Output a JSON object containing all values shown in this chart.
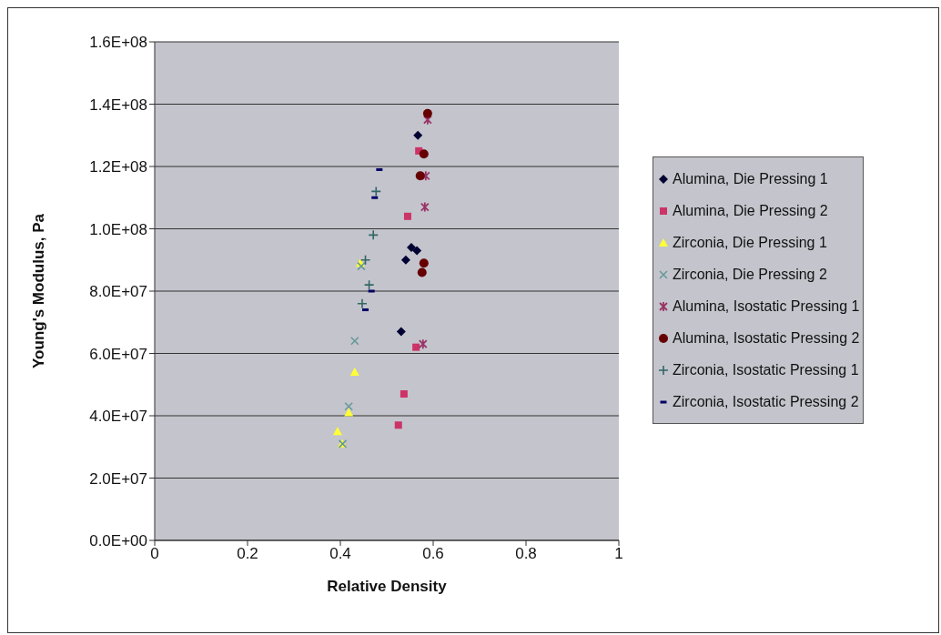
{
  "chart_data": {
    "type": "scatter",
    "xlabel": "Relative Density",
    "ylabel": "Young's Modulus, Pa",
    "xlim": [
      0,
      1
    ],
    "xticks": [
      0,
      0.2,
      0.4,
      0.6,
      0.8,
      1
    ],
    "ylim": [
      0,
      160000000
    ],
    "yticks": [
      {
        "value": 0,
        "label": "0.0E+00"
      },
      {
        "value": 20000000,
        "label": "2.0E+07"
      },
      {
        "value": 40000000,
        "label": "4.0E+07"
      },
      {
        "value": 60000000,
        "label": "6.0E+07"
      },
      {
        "value": 80000000,
        "label": "8.0E+07"
      },
      {
        "value": 100000000,
        "label": "1.0E+08"
      },
      {
        "value": 120000000,
        "label": "1.2E+08"
      },
      {
        "value": 140000000,
        "label": "1.4E+08"
      },
      {
        "value": 160000000,
        "label": "1.6E+08"
      }
    ],
    "grid": "y",
    "legend": "right",
    "series": [
      {
        "name": "Alumina, Die Pressing 1",
        "color": "#000033",
        "marker": "diamond",
        "x": [
          0.567,
          0.553,
          0.565,
          0.541,
          0.531
        ],
        "values": [
          130000000,
          94000000,
          93000000,
          90000000,
          67000000
        ]
      },
      {
        "name": "Alumina, Die Pressing 2",
        "color": "#cc3366",
        "marker": "square",
        "x": [
          0.569,
          0.545,
          0.563,
          0.537,
          0.525
        ],
        "values": [
          125000000,
          104000000,
          62000000,
          47000000,
          37000000
        ]
      },
      {
        "name": "Zirconia, Die Pressing 1",
        "color": "#ffff33",
        "marker": "triangle",
        "x": [
          0.443,
          0.431,
          0.418,
          0.394,
          0.404
        ],
        "values": [
          89000000,
          54000000,
          41000000,
          35000000,
          31000000
        ]
      },
      {
        "name": "Zirconia, Die Pressing 2",
        "color": "#669999",
        "marker": "cross",
        "x": [
          0.445,
          0.431,
          0.418,
          0.405
        ],
        "values": [
          88000000,
          64000000,
          43000000,
          31000000
        ]
      },
      {
        "name": "Alumina, Isostatic Pressing 1",
        "color": "#993366",
        "marker": "cross",
        "x": [
          0.588,
          0.584,
          0.582,
          0.578
        ],
        "values": [
          135000000,
          117000000,
          107000000,
          63000000
        ]
      },
      {
        "name": "Alumina, Isostatic Pressing 2",
        "color": "#660000",
        "marker": "circle",
        "x": [
          0.588,
          0.58,
          0.572,
          0.58,
          0.576
        ],
        "values": [
          137000000,
          124000000,
          117000000,
          89000000,
          86000000
        ]
      },
      {
        "name": "Zirconia, Isostatic Pressing 1",
        "color": "#336666",
        "marker": "cross",
        "x": [
          0.477,
          0.471,
          0.454,
          0.462,
          0.447
        ],
        "values": [
          112000000,
          98000000,
          90000000,
          82000000,
          76000000
        ]
      },
      {
        "name": "Zirconia, Isostatic Pressing 2",
        "color": "#000066",
        "marker": "square",
        "x": [
          0.484,
          0.474,
          0.467,
          0.454
        ],
        "values": [
          119000000,
          110000000,
          80000000,
          74000000
        ]
      }
    ]
  }
}
